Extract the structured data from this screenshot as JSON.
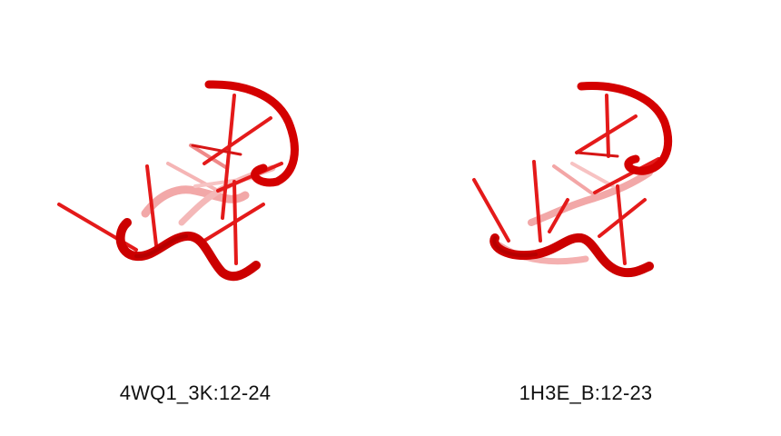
{
  "colors": {
    "backbone": "#d40000",
    "backbone_dark": "#a00000",
    "base": "#e41a1a",
    "base_faded": "#f4a0a0",
    "caption": "#111111"
  },
  "panels": [
    {
      "caption": "4WQ1_3K:12-24"
    },
    {
      "caption": "1H3E_B:12-23"
    }
  ]
}
